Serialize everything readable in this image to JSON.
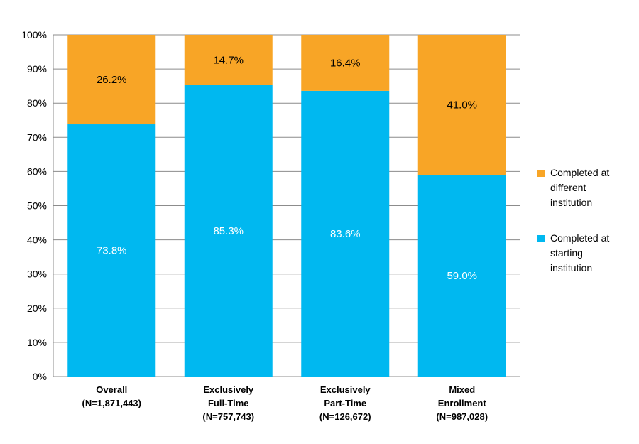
{
  "chart_data": {
    "type": "bar",
    "stacked": true,
    "categories": [
      [
        "Overall",
        "(N=1,871,443)"
      ],
      [
        "Exclusively",
        "Full-Time",
        "(N=757,743)"
      ],
      [
        "Exclusively",
        "Part-Time",
        "(N=126,672)"
      ],
      [
        "Mixed",
        "Enrollment",
        "(N=987,028)"
      ]
    ],
    "series": [
      {
        "name": "Completed at starting institution",
        "legend_lines": [
          "Completed at",
          "starting",
          "institution"
        ],
        "color": "#00B8F0",
        "label_color": "#ffffff",
        "values": [
          73.8,
          85.3,
          83.6,
          59.0
        ],
        "labels": [
          "73.8%",
          "85.3%",
          "83.6%",
          "59.0%"
        ]
      },
      {
        "name": "Completed at different institution",
        "legend_lines": [
          "Completed at",
          "different",
          "institution"
        ],
        "color": "#F8A526",
        "label_color": "#000000",
        "values": [
          26.2,
          14.7,
          16.4,
          41.0
        ],
        "labels": [
          "26.2%",
          "14.7%",
          "16.4%",
          "41.0%"
        ]
      }
    ],
    "ylim": [
      0,
      100
    ],
    "yticks": [
      0,
      10,
      20,
      30,
      40,
      50,
      60,
      70,
      80,
      90,
      100
    ],
    "ytick_labels": [
      "0%",
      "10%",
      "20%",
      "30%",
      "40%",
      "50%",
      "60%",
      "70%",
      "80%",
      "90%",
      "100%"
    ],
    "grid": true,
    "legend_position": "right",
    "title": "",
    "xlabel": "",
    "ylabel": ""
  }
}
